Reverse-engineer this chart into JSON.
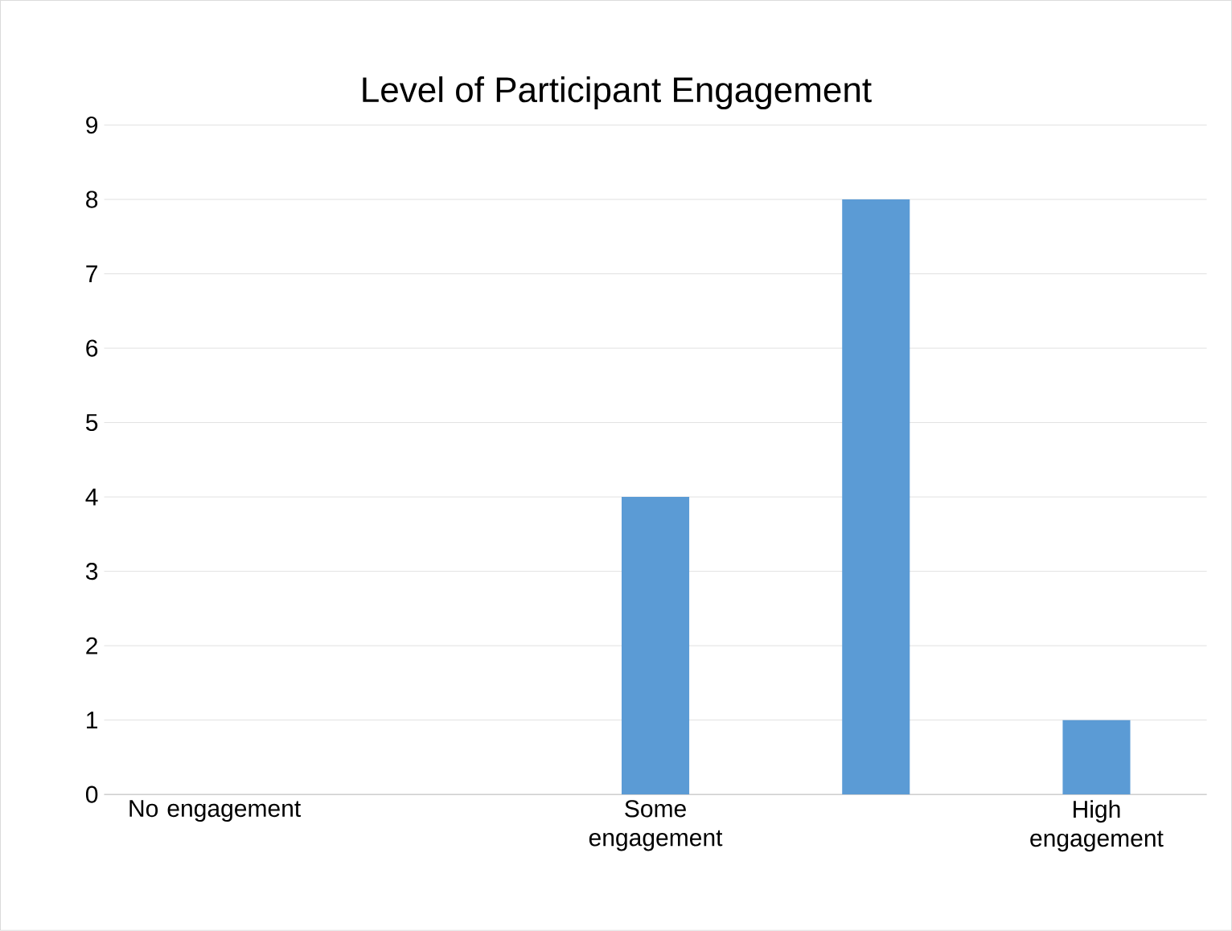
{
  "chart_data": {
    "type": "bar",
    "title": "Level of Participant Engagement",
    "categories": [
      "No engagement",
      null,
      "Some engagement",
      null,
      "High engagement"
    ],
    "values": [
      0,
      0,
      4,
      8,
      1
    ],
    "color": "#5b9bd5",
    "ylim": [
      0,
      9
    ],
    "yticks": [
      0,
      1,
      2,
      3,
      4,
      5,
      6,
      7,
      8,
      9
    ],
    "grid": "y"
  }
}
